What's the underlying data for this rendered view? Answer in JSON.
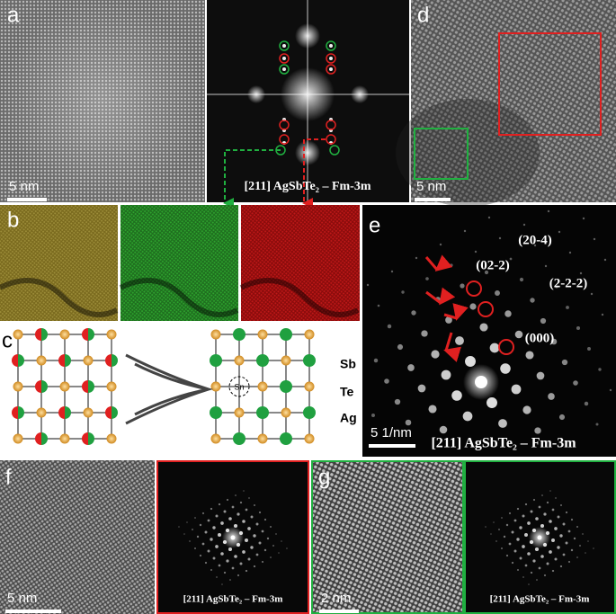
{
  "panels": {
    "a": {
      "label": "a",
      "scale_bar": "5 nm"
    },
    "a_fft": {
      "caption": "[211] AgSbTe₂ – Fm-3m"
    },
    "b": {
      "label": "b"
    },
    "c": {
      "label": "c",
      "legend": [
        "Sb",
        "Te",
        "Ag"
      ],
      "dopant": "Sn"
    },
    "d": {
      "label": "d",
      "scale_bar": "5 nm"
    },
    "e": {
      "label": "e",
      "spots": [
        "(20-4)",
        "(02-2)",
        "(2-2-2)",
        "(000)"
      ],
      "scale_bar": "5 1/nm",
      "caption": "[211] AgSbTe₂ – Fm-3m"
    },
    "f": {
      "label": "f",
      "scale_bar": "5 nm",
      "caption": "[211] AgSbTe₂ – Fm-3m"
    },
    "g": {
      "label": "g",
      "scale_bar": "2 nm",
      "caption": "[211] AgSbTe₂ – Fm-3m"
    }
  }
}
